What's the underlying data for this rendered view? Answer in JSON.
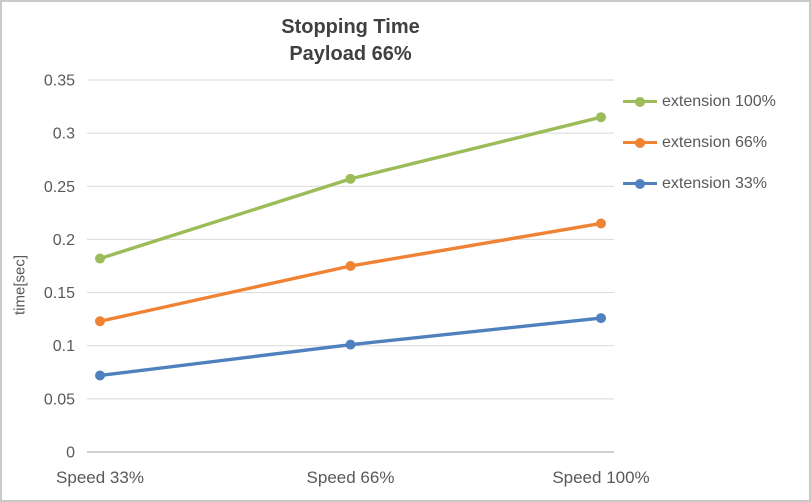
{
  "chart": {
    "title_line1": "Stopping Time",
    "title_line2": "Payload 66%",
    "ylabel": "time[sec]"
  },
  "chart_data": {
    "type": "line",
    "title": "Stopping Time — Payload 66%",
    "xlabel": "",
    "ylabel": "time[sec]",
    "categories": [
      "Speed 33%",
      "Speed 66%",
      "Speed 100%"
    ],
    "series": [
      {
        "name": "extension 100%",
        "color": "#9CBB59",
        "values": [
          0.182,
          0.257,
          0.315
        ]
      },
      {
        "name": "extension 66%",
        "color": "#F08233",
        "values": [
          0.123,
          0.175,
          0.215
        ]
      },
      {
        "name": "extension 33%",
        "color": "#4E81BD",
        "values": [
          0.072,
          0.101,
          0.126
        ]
      }
    ],
    "ylim": [
      0,
      0.35
    ],
    "ytick_step": 0.05,
    "yticks": [
      "0",
      "0.05",
      "0.1",
      "0.15",
      "0.2",
      "0.25",
      "0.3",
      "0.35"
    ],
    "grid": true,
    "legend_position": "right",
    "marker": "circle"
  },
  "colors": {
    "grid": "#D9D9D9",
    "axis": "#BFBFBF",
    "tick_text": "#595959",
    "title_text": "#404040",
    "border": "#C9C9C9",
    "background": "#FFFFFF"
  }
}
